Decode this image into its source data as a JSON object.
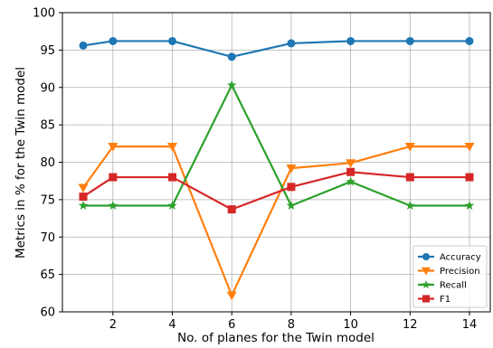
{
  "chart_data": {
    "type": "line",
    "xlabel": "No. of planes for the Twin model",
    "ylabel": "Metrics in % for the Twin model",
    "x": [
      1,
      2,
      4,
      6,
      8,
      10,
      12,
      14
    ],
    "xticks": [
      2,
      4,
      6,
      8,
      10,
      12,
      14
    ],
    "xlim": [
      0.3,
      14.7
    ],
    "ylim": [
      60,
      100
    ],
    "yticks": [
      60,
      65,
      70,
      75,
      80,
      85,
      90,
      95,
      100
    ],
    "grid": true,
    "legend_position": "bottom-right",
    "series": [
      {
        "name": "Accuracy",
        "color": "#1f77b4",
        "marker": "circle",
        "values": [
          95.6,
          96.2,
          96.2,
          94.1,
          95.9,
          96.2,
          96.2,
          96.2
        ]
      },
      {
        "name": "Precision",
        "color": "#ff7f0e",
        "marker": "triangle-down",
        "values": [
          76.6,
          82.1,
          82.1,
          62.2,
          79.2,
          79.9,
          82.1,
          82.1
        ]
      },
      {
        "name": "Recall",
        "color": "#2ca02c",
        "marker": "star",
        "values": [
          74.2,
          74.2,
          74.2,
          90.3,
          74.2,
          77.4,
          74.2,
          74.2
        ]
      },
      {
        "name": "F1",
        "color": "#d62728",
        "marker": "square",
        "values": [
          75.4,
          78.0,
          78.0,
          73.7,
          76.7,
          78.7,
          78.0,
          78.0
        ]
      }
    ]
  }
}
